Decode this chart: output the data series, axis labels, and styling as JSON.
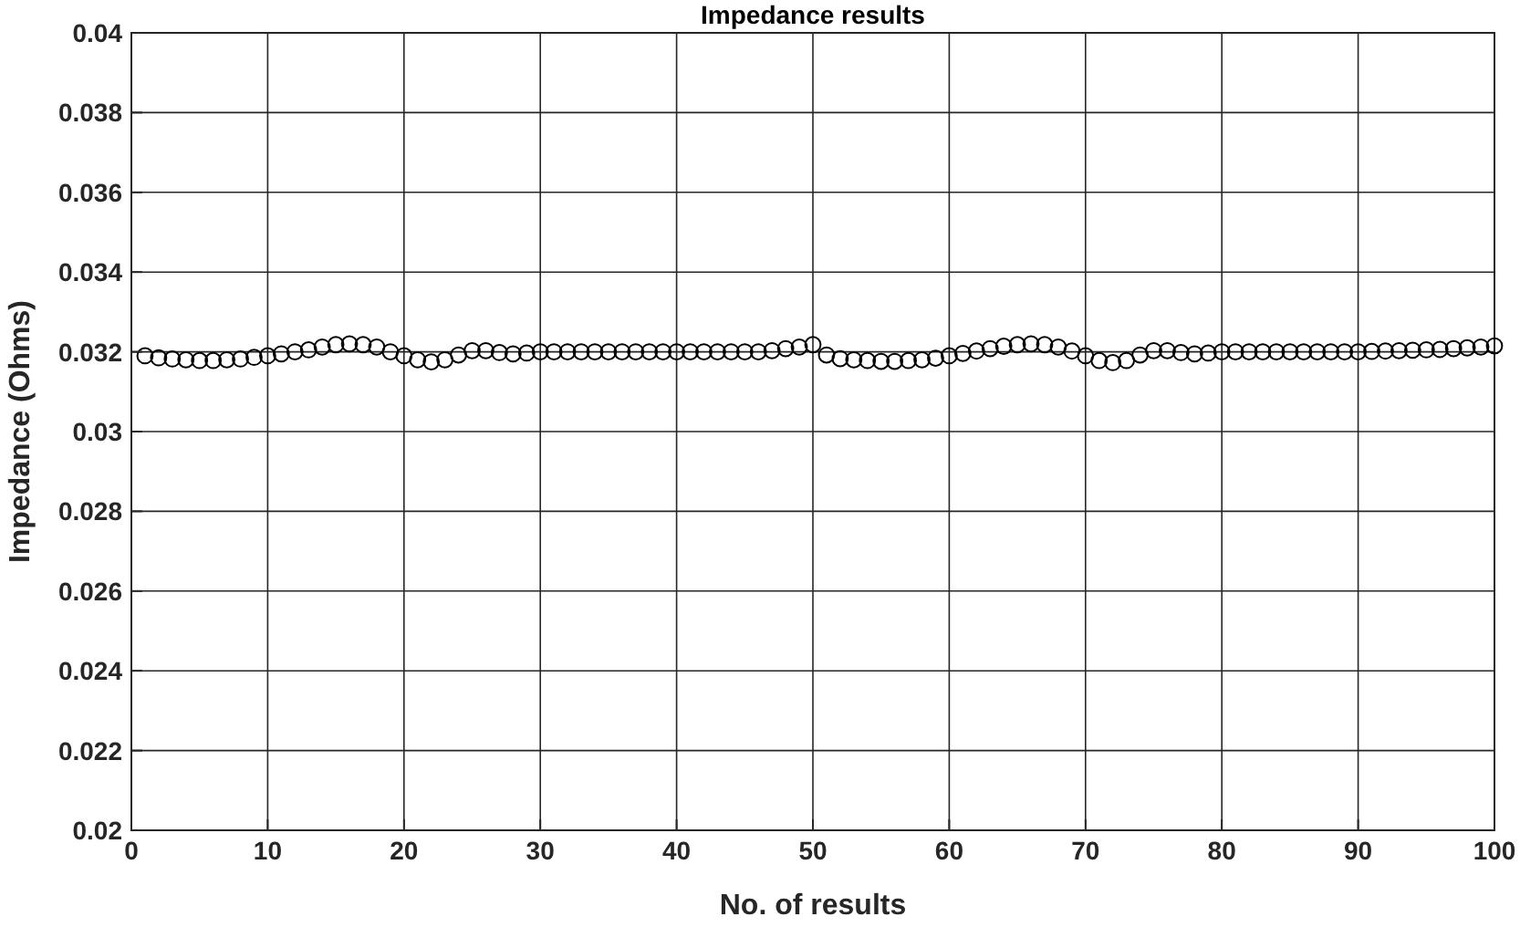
{
  "chart_data": {
    "type": "scatter",
    "title": "Impedance results",
    "xlabel": "No. of results",
    "ylabel": "Impedance (Ohms)",
    "x": [
      1,
      2,
      3,
      4,
      5,
      6,
      7,
      8,
      9,
      10,
      11,
      12,
      13,
      14,
      15,
      16,
      17,
      18,
      19,
      20,
      21,
      22,
      23,
      24,
      25,
      26,
      27,
      28,
      29,
      30,
      31,
      32,
      33,
      34,
      35,
      36,
      37,
      38,
      39,
      40,
      41,
      42,
      43,
      44,
      45,
      46,
      47,
      48,
      49,
      50,
      51,
      52,
      53,
      54,
      55,
      56,
      57,
      58,
      59,
      60,
      61,
      62,
      63,
      64,
      65,
      66,
      67,
      68,
      69,
      70,
      71,
      72,
      73,
      74,
      75,
      76,
      77,
      78,
      79,
      80,
      81,
      82,
      83,
      84,
      85,
      86,
      87,
      88,
      89,
      90,
      91,
      92,
      93,
      94,
      95,
      96,
      97,
      98,
      99,
      100
    ],
    "series": [
      {
        "color": "#000000",
        "values": [
          0.0319,
          0.03185,
          0.03182,
          0.0318,
          0.03178,
          0.03178,
          0.0318,
          0.03182,
          0.03186,
          0.0319,
          0.03195,
          0.032,
          0.03205,
          0.03212,
          0.03218,
          0.0322,
          0.03218,
          0.03212,
          0.032,
          0.0319,
          0.0318,
          0.03175,
          0.0318,
          0.03192,
          0.03203,
          0.03203,
          0.03198,
          0.03195,
          0.03197,
          0.032,
          0.032,
          0.032,
          0.032,
          0.032,
          0.032,
          0.032,
          0.032,
          0.032,
          0.032,
          0.032,
          0.032,
          0.032,
          0.032,
          0.032,
          0.032,
          0.032,
          0.03203,
          0.03208,
          0.03212,
          0.03218,
          0.03192,
          0.03183,
          0.0318,
          0.03178,
          0.03176,
          0.03176,
          0.03178,
          0.0318,
          0.03184,
          0.0319,
          0.03196,
          0.03202,
          0.03208,
          0.03214,
          0.03218,
          0.0322,
          0.03218,
          0.03212,
          0.03202,
          0.0319,
          0.03178,
          0.03173,
          0.03178,
          0.03192,
          0.03203,
          0.03203,
          0.03198,
          0.03195,
          0.03197,
          0.032,
          0.032,
          0.032,
          0.032,
          0.032,
          0.032,
          0.032,
          0.032,
          0.032,
          0.032,
          0.032,
          0.03201,
          0.03202,
          0.03203,
          0.03204,
          0.03205,
          0.03206,
          0.03208,
          0.0321,
          0.03212,
          0.03215
        ]
      }
    ],
    "xlim": [
      0,
      100
    ],
    "xticks": [
      0,
      10,
      20,
      30,
      40,
      50,
      60,
      70,
      80,
      90,
      100
    ],
    "ylim": [
      0.02,
      0.04
    ],
    "yticks": [
      0.02,
      0.022,
      0.024,
      0.026,
      0.028,
      0.03,
      0.032,
      0.034,
      0.036,
      0.038,
      0.04
    ],
    "grid": true,
    "marker": "circle"
  }
}
